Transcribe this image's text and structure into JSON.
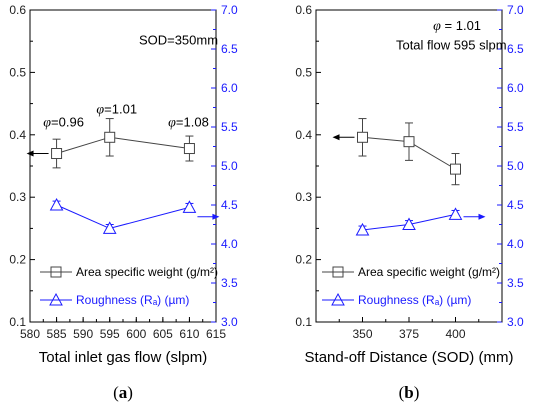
{
  "colors": {
    "weight": "#444444",
    "roughness": "#1a1aff",
    "black": "#000000"
  },
  "chart_data": [
    {
      "type": "line",
      "panel_label_pre": "(",
      "panel_label_letter": "a",
      "panel_label_post": ")",
      "xlabel": "Total inlet gas flow (slpm)",
      "xlim": [
        580,
        615
      ],
      "xticks": [
        "580",
        "585",
        "590",
        "595",
        "600",
        "605",
        "610",
        "615"
      ],
      "ylim_left": [
        0.1,
        0.6
      ],
      "yticks_left": [
        "0.1",
        "0.2",
        "0.3",
        "0.4",
        "0.5",
        "0.6"
      ],
      "ylim_right": [
        3.0,
        7.0
      ],
      "yticks_right": [
        "3.0",
        "3.5",
        "4.0",
        "4.5",
        "5.0",
        "5.5",
        "6.0",
        "6.5",
        "7.0"
      ],
      "annotations": [
        {
          "text": "SOD=350mm",
          "x": 600.5,
          "y": 0.545
        },
        {
          "text": "φ=0.96",
          "x": 582.5,
          "y": 0.413
        },
        {
          "text": "φ=1.01",
          "x": 592.5,
          "y": 0.434
        },
        {
          "text": "φ=1.08",
          "x": 606.0,
          "y": 0.413
        }
      ],
      "series": [
        {
          "name": "Area specific weight (g/m²)",
          "axis": "left",
          "marker": "square",
          "x": [
            585,
            595,
            610
          ],
          "y": [
            0.37,
            0.396,
            0.378
          ],
          "err": [
            0.023,
            0.03,
            0.02
          ]
        },
        {
          "name": "Roughness (Rₐ) (µm)",
          "axis": "right",
          "marker": "triangle",
          "x": [
            585,
            595,
            610
          ],
          "y": [
            4.5,
            4.2,
            4.47
          ],
          "err": [
            0.05,
            0.05,
            0.05
          ]
        }
      ],
      "arrow_left": {
        "x": 585,
        "y": 0.37
      },
      "arrow_right": {
        "x": 610,
        "y": 4.35
      }
    },
    {
      "type": "line",
      "panel_label_pre": "(",
      "panel_label_letter": "b",
      "panel_label_post": ")",
      "xlabel": "Stand-off Distance (SOD) (mm)",
      "xlim": [
        325,
        425
      ],
      "xticks": [
        "350",
        "375",
        "400"
      ],
      "ylim_left": [
        0.1,
        0.6
      ],
      "yticks_left": [
        "0.1",
        "0.2",
        "0.3",
        "0.4",
        "0.5",
        "0.6"
      ],
      "ylim_right": [
        3.0,
        7.0
      ],
      "yticks_right": [
        "3.0",
        "3.5",
        "4.0",
        "4.5",
        "5.0",
        "5.5",
        "6.0",
        "6.5",
        "7.0"
      ],
      "annotations": [
        {
          "text": "φ = 1.01",
          "x": 388,
          "y": 0.568
        },
        {
          "text": "Total flow 595 slpm",
          "x": 368,
          "y": 0.537
        }
      ],
      "series": [
        {
          "name": "Area specific weight (g/m²)",
          "axis": "left",
          "marker": "square",
          "x": [
            350,
            375,
            400
          ],
          "y": [
            0.396,
            0.389,
            0.345
          ],
          "err": [
            0.03,
            0.03,
            0.025
          ]
        },
        {
          "name": "Roughness (Rₐ) (µm)",
          "axis": "right",
          "marker": "triangle",
          "x": [
            350,
            375,
            400
          ],
          "y": [
            4.18,
            4.25,
            4.38
          ],
          "err": [
            0.05,
            0.05,
            0.05
          ]
        }
      ],
      "arrow_left": {
        "x": 350,
        "y": 0.396
      },
      "arrow_right": {
        "x": 400,
        "y": 4.35
      }
    }
  ]
}
